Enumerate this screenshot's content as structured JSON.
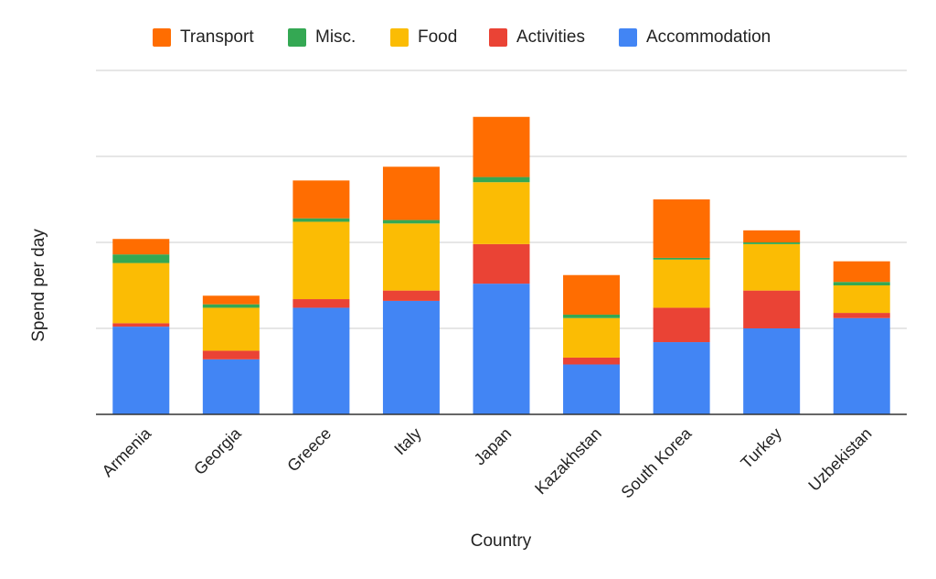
{
  "chart_data": {
    "type": "bar",
    "stacked": true,
    "title": "",
    "xlabel": "Country",
    "ylabel": "Spend per day",
    "ylim": [
      0,
      100
    ],
    "y_tick_labels_shown": false,
    "grid": true,
    "legend_position": "top",
    "categories": [
      "Armenia",
      "Georgia",
      "Greece",
      "Italy",
      "Japan",
      "Kazakhstan",
      "South Korea",
      "Turkey",
      "Uzbekistan"
    ],
    "series": [
      {
        "name": "Accommodation",
        "color": "#4285F4",
        "values": [
          25.5,
          16,
          31,
          33,
          38,
          14.5,
          21,
          25,
          28
        ]
      },
      {
        "name": "Activities",
        "color": "#EA4335",
        "values": [
          1,
          2.5,
          2.5,
          3,
          11.5,
          2,
          10,
          11,
          1.5
        ]
      },
      {
        "name": "Food",
        "color": "#FBBC04",
        "values": [
          17.5,
          12.5,
          22.5,
          19.5,
          18,
          11.5,
          14,
          13.5,
          8
        ]
      },
      {
        "name": "Misc.",
        "color": "#34A853",
        "values": [
          2.5,
          1,
          1,
          1,
          1.5,
          1,
          0.5,
          0.5,
          1
        ]
      },
      {
        "name": "Transport",
        "color": "#FF6D01",
        "values": [
          4.5,
          2.5,
          11,
          15.5,
          17.5,
          11.5,
          17,
          3.5,
          6
        ]
      }
    ],
    "legend": [
      {
        "label": "Transport",
        "color": "#FF6D01"
      },
      {
        "label": "Misc.",
        "color": "#34A853"
      },
      {
        "label": "Food",
        "color": "#FBBC04"
      },
      {
        "label": "Activities",
        "color": "#EA4335"
      },
      {
        "label": "Accommodation",
        "color": "#4285F4"
      }
    ]
  }
}
